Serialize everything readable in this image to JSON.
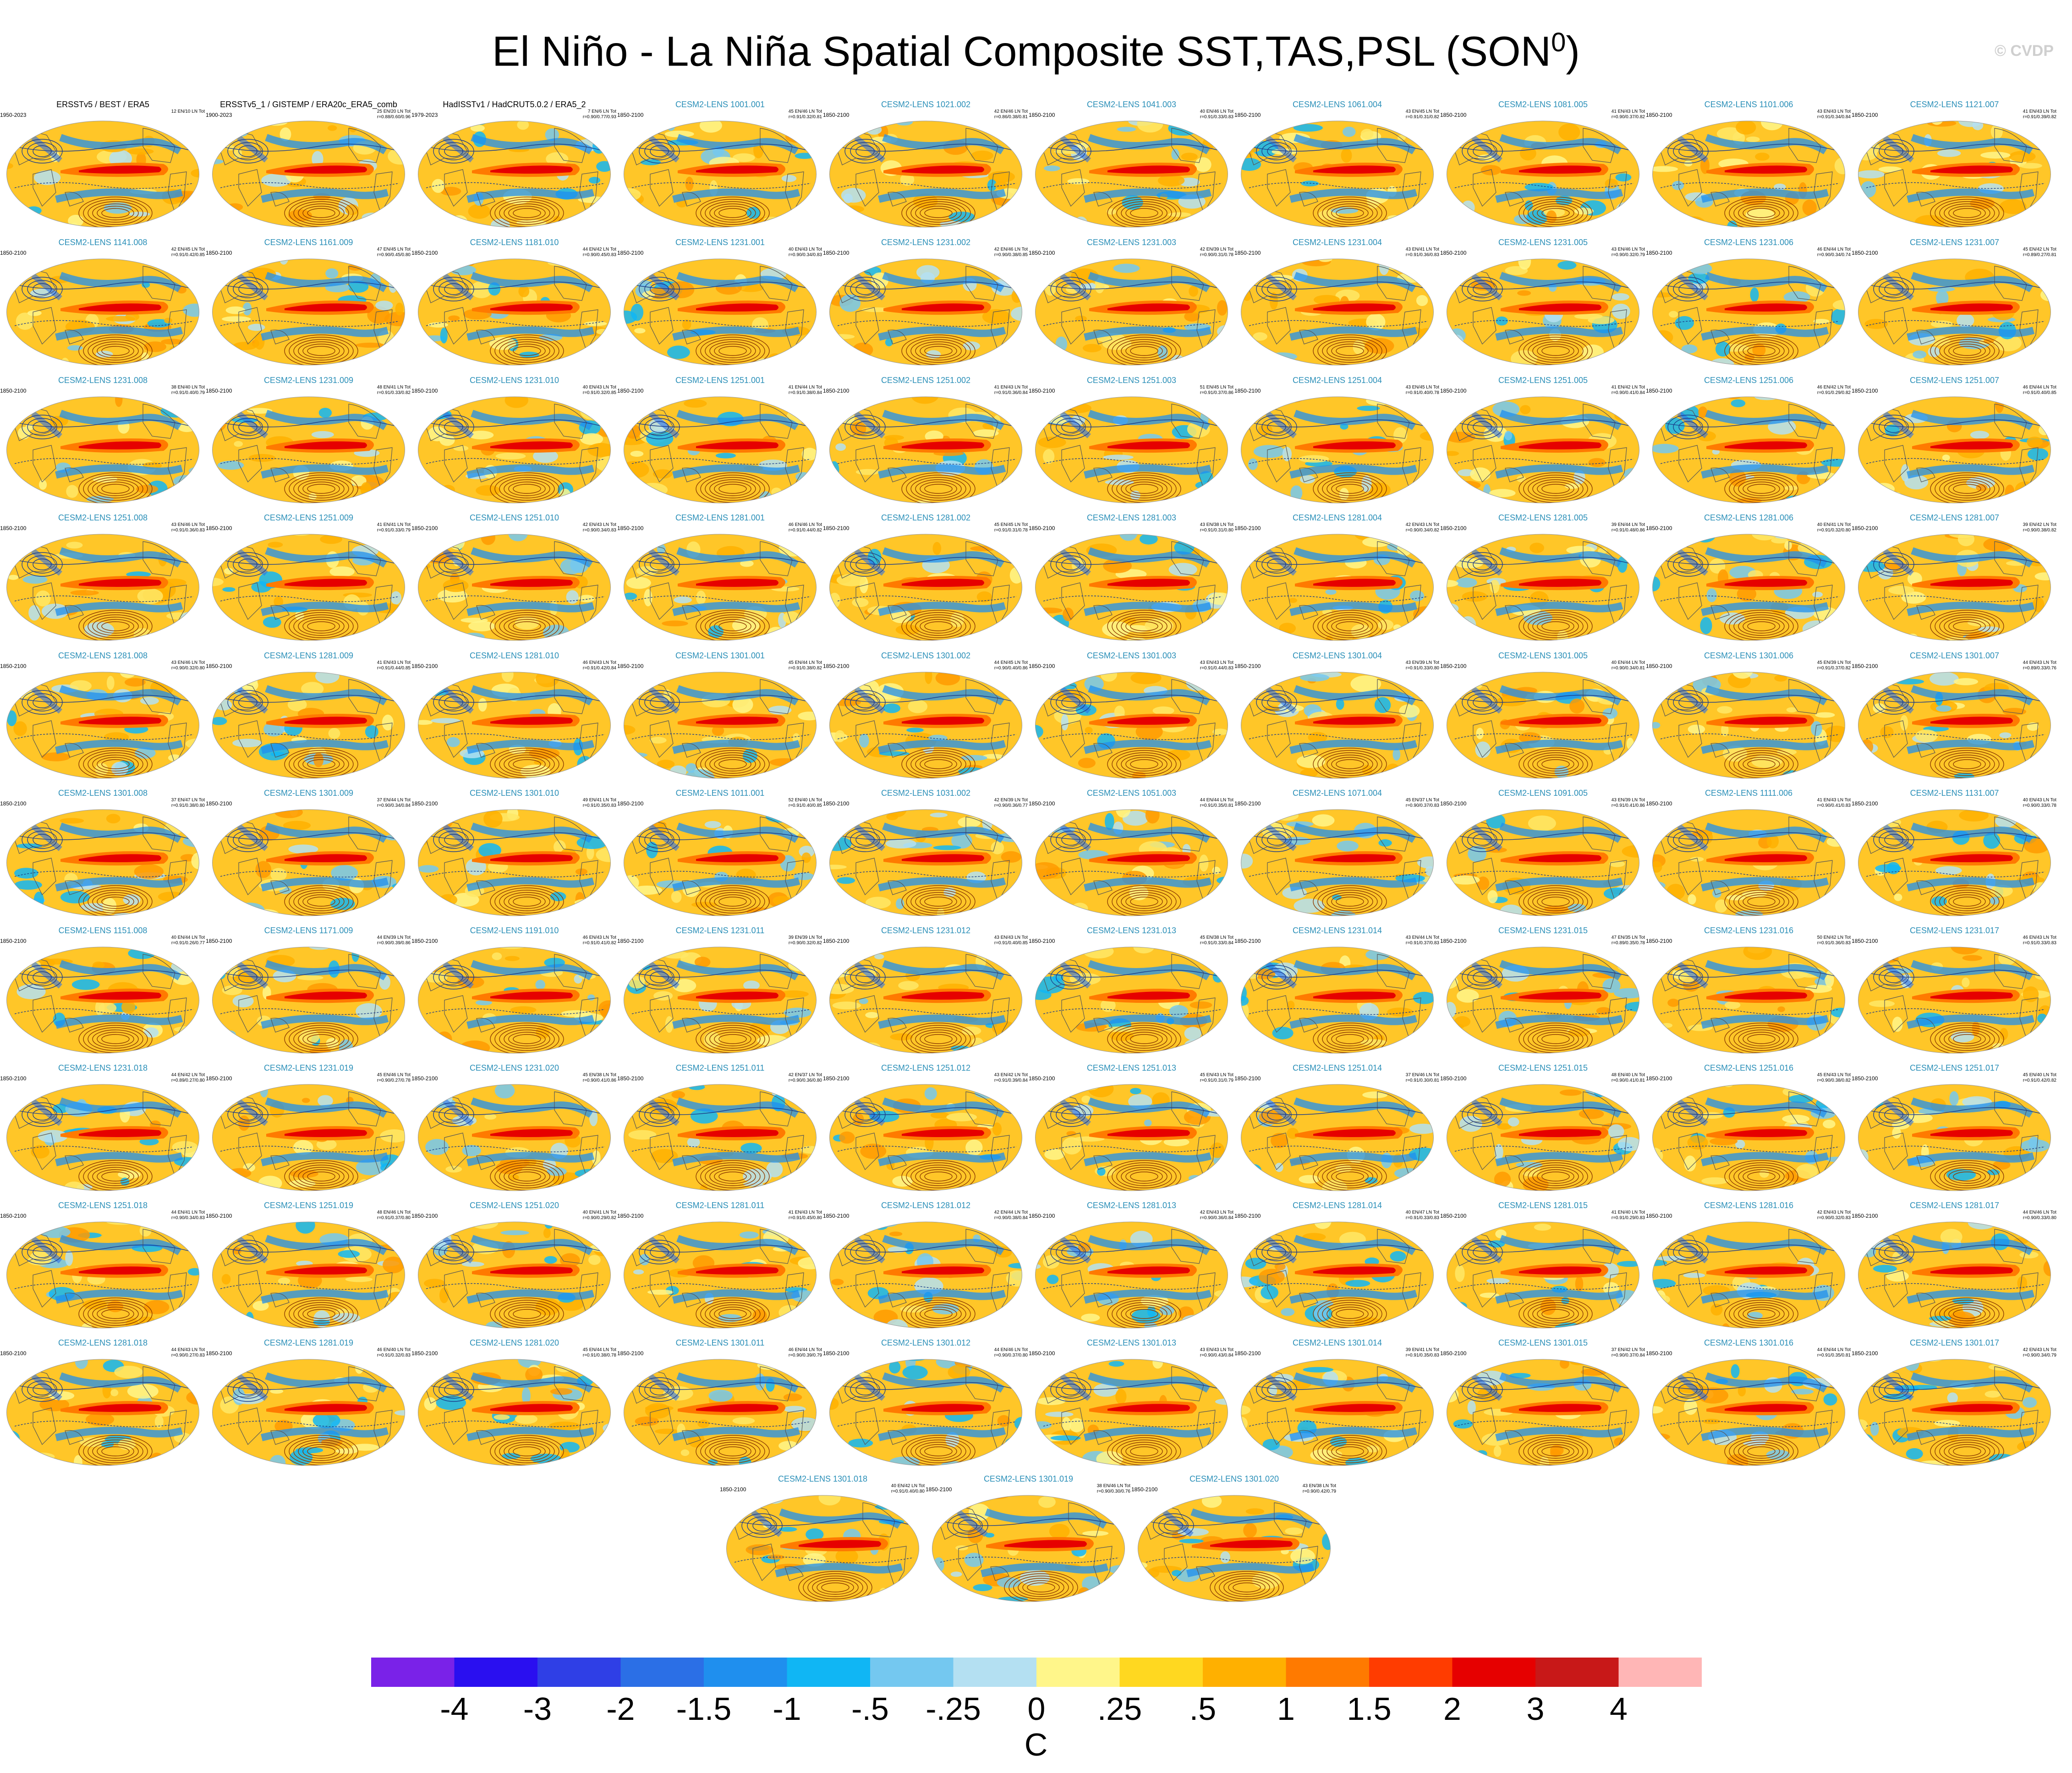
{
  "title": {
    "main": "El Niño - La Niña Spatial Composite SST,TAS,PSL (SON",
    "sup": "0",
    "end": ")"
  },
  "watermark": "© CVDP",
  "chart_data": {
    "type": "heatmap",
    "title": "El Niño - La Niña Spatial Composite SST,TAS,PSL (SON0)",
    "colorbar": {
      "unit": "C",
      "tick_labels": [
        "-4",
        "-3",
        "-2",
        "-1.5",
        "-1",
        "-.5",
        "-.25",
        "0",
        ".25",
        ".5",
        "1",
        "1.5",
        "2",
        "3",
        "4"
      ],
      "colors": [
        "#7a22e8",
        "#2a0ff0",
        "#2f3fe6",
        "#2b6fe6",
        "#1f8fee",
        "#10b6f4",
        "#74c8f0",
        "#b4e0f2",
        "#fff68a",
        "#ffd820",
        "#ffb000",
        "#ff7a00",
        "#ff3c00",
        "#e60000",
        "#c81818",
        "#ffb6b6"
      ]
    },
    "panels": [
      {
        "title": "ERSSTv5 / BEST / ERA5",
        "period": "1950-2023",
        "stats1": "12 EN/10 LN Tot",
        "stats2": "",
        "obs": true
      },
      {
        "title": "ERSSTv5_1 / GISTEMP / ERA20c_ERA5_comb",
        "period": "1900-2023",
        "stats1": "25 EN/20 LN Tot",
        "stats2": "r=0.88/0.60/0.96",
        "obs": true
      },
      {
        "title": "HadISSTv1 / HadCRUT5.0.2 / ERA5_2",
        "period": "1979-2023",
        "stats1": "7 EN/6 LN Tot",
        "stats2": "r=0.90/0.77/0.93",
        "obs": true
      },
      {
        "title": "CESM2-LENS 1001.001",
        "period": "1850-2100",
        "stats1": "45 EN/46 LN Tot",
        "stats2": "r=0.91/0.32/0.81"
      },
      {
        "title": "CESM2-LENS 1021.002",
        "period": "1850-2100",
        "stats1": "42 EN/46 LN Tot",
        "stats2": "r=0.86/0.38/0.81"
      },
      {
        "title": "CESM2-LENS 1041.003",
        "period": "1850-2100",
        "stats1": "40 EN/46 LN Tot",
        "stats2": "r=0.91/0.33/0.83"
      },
      {
        "title": "CESM2-LENS 1061.004",
        "period": "1850-2100",
        "stats1": "43 EN/45 LN Tot",
        "stats2": "r=0.91/0.31/0.82"
      },
      {
        "title": "CESM2-LENS 1081.005",
        "period": "1850-2100",
        "stats1": "41 EN/43 LN Tot",
        "stats2": "r=0.90/0.37/0.82"
      },
      {
        "title": "CESM2-LENS 1101.006",
        "period": "1850-2100",
        "stats1": "43 EN/43 LN Tot",
        "stats2": "r=0.91/0.34/0.84"
      },
      {
        "title": "CESM2-LENS 1121.007",
        "period": "1850-2100",
        "stats1": "41 EN/43 LN Tot",
        "stats2": "r=0.91/0.39/0.82"
      },
      {
        "title": "CESM2-LENS 1141.008",
        "period": "1850-2100",
        "stats1": "42 EN/45 LN Tot",
        "stats2": "r=0.91/0.42/0.85"
      },
      {
        "title": "CESM2-LENS 1161.009",
        "period": "1850-2100",
        "stats1": "47 EN/45 LN Tot",
        "stats2": "r=0.90/0.45/0.80"
      },
      {
        "title": "CESM2-LENS 1181.010",
        "period": "1850-2100",
        "stats1": "44 EN/42 LN Tot",
        "stats2": "r=0.90/0.45/0.83"
      },
      {
        "title": "CESM2-LENS 1231.001",
        "period": "1850-2100",
        "stats1": "40 EN/43 LN Tot",
        "stats2": "r=0.90/0.34/0.83"
      },
      {
        "title": "CESM2-LENS 1231.002",
        "period": "1850-2100",
        "stats1": "42 EN/46 LN Tot",
        "stats2": "r=0.90/0.38/0.85"
      },
      {
        "title": "CESM2-LENS 1231.003",
        "period": "1850-2100",
        "stats1": "42 EN/39 LN Tot",
        "stats2": "r=0.90/0.31/0.78"
      },
      {
        "title": "CESM2-LENS 1231.004",
        "period": "1850-2100",
        "stats1": "43 EN/41 LN Tot",
        "stats2": "r=0.91/0.36/0.83"
      },
      {
        "title": "CESM2-LENS 1231.005",
        "period": "1850-2100",
        "stats1": "43 EN/46 LN Tot",
        "stats2": "r=0.90/0.32/0.79"
      },
      {
        "title": "CESM2-LENS 1231.006",
        "period": "1850-2100",
        "stats1": "46 EN/44 LN Tot",
        "stats2": "r=0.90/0.34/0.74"
      },
      {
        "title": "CESM2-LENS 1231.007",
        "period": "1850-2100",
        "stats1": "45 EN/42 LN Tot",
        "stats2": "r=0.89/0.27/0.81"
      },
      {
        "title": "CESM2-LENS 1231.008",
        "period": "1850-2100",
        "stats1": "38 EN/40 LN Tot",
        "stats2": "r=0.91/0.40/0.79"
      },
      {
        "title": "CESM2-LENS 1231.009",
        "period": "1850-2100",
        "stats1": "48 EN/41 LN Tot",
        "stats2": "r=0.91/0.33/0.82"
      },
      {
        "title": "CESM2-LENS 1231.010",
        "period": "1850-2100",
        "stats1": "40 EN/43 LN Tot",
        "stats2": "r=0.91/0.32/0.85"
      },
      {
        "title": "CESM2-LENS 1251.001",
        "period": "1850-2100",
        "stats1": "41 EN/44 LN Tot",
        "stats2": "r=0.91/0.38/0.84"
      },
      {
        "title": "CESM2-LENS 1251.002",
        "period": "1850-2100",
        "stats1": "41 EN/43 LN Tot",
        "stats2": "r=0.91/0.36/0.84"
      },
      {
        "title": "CESM2-LENS 1251.003",
        "period": "1850-2100",
        "stats1": "51 EN/45 LN Tot",
        "stats2": "r=0.91/0.37/0.86"
      },
      {
        "title": "CESM2-LENS 1251.004",
        "period": "1850-2100",
        "stats1": "43 EN/45 LN Tot",
        "stats2": "r=0.91/0.40/0.78"
      },
      {
        "title": "CESM2-LENS 1251.005",
        "period": "1850-2100",
        "stats1": "41 EN/42 LN Tot",
        "stats2": "r=0.90/0.41/0.84"
      },
      {
        "title": "CESM2-LENS 1251.006",
        "period": "1850-2100",
        "stats1": "46 EN/42 LN Tot",
        "stats2": "r=0.91/0.29/0.82"
      },
      {
        "title": "CESM2-LENS 1251.007",
        "period": "1850-2100",
        "stats1": "46 EN/44 LN Tot",
        "stats2": "r=0.91/0.40/0.85"
      },
      {
        "title": "CESM2-LENS 1251.008",
        "period": "1850-2100",
        "stats1": "43 EN/46 LN Tot",
        "stats2": "r=0.91/0.36/0.83"
      },
      {
        "title": "CESM2-LENS 1251.009",
        "period": "1850-2100",
        "stats1": "41 EN/41 LN Tot",
        "stats2": "r=0.91/0.33/0.79"
      },
      {
        "title": "CESM2-LENS 1251.010",
        "period": "1850-2100",
        "stats1": "42 EN/43 LN Tot",
        "stats2": "r=0.90/0.34/0.83"
      },
      {
        "title": "CESM2-LENS 1281.001",
        "period": "1850-2100",
        "stats1": "46 EN/46 LN Tot",
        "stats2": "r=0.91/0.44/0.82"
      },
      {
        "title": "CESM2-LENS 1281.002",
        "period": "1850-2100",
        "stats1": "45 EN/45 LN Tot",
        "stats2": "r=0.91/0.31/0.78"
      },
      {
        "title": "CESM2-LENS 1281.003",
        "period": "1850-2100",
        "stats1": "43 EN/38 LN Tot",
        "stats2": "r=0.91/0.31/0.80"
      },
      {
        "title": "CESM2-LENS 1281.004",
        "period": "1850-2100",
        "stats1": "42 EN/43 LN Tot",
        "stats2": "r=0.90/0.34/0.82"
      },
      {
        "title": "CESM2-LENS 1281.005",
        "period": "1850-2100",
        "stats1": "39 EN/44 LN Tot",
        "stats2": "r=0.91/0.48/0.86"
      },
      {
        "title": "CESM2-LENS 1281.006",
        "period": "1850-2100",
        "stats1": "40 EN/41 LN Tot",
        "stats2": "r=0.91/0.32/0.80"
      },
      {
        "title": "CESM2-LENS 1281.007",
        "period": "1850-2100",
        "stats1": "39 EN/42 LN Tot",
        "stats2": "r=0.90/0.38/0.82"
      },
      {
        "title": "CESM2-LENS 1281.008",
        "period": "1850-2100",
        "stats1": "43 EN/46 LN Tot",
        "stats2": "r=0.90/0.32/0.80"
      },
      {
        "title": "CESM2-LENS 1281.009",
        "period": "1850-2100",
        "stats1": "41 EN/43 LN Tot",
        "stats2": "r=0.91/0.44/0.85"
      },
      {
        "title": "CESM2-LENS 1281.010",
        "period": "1850-2100",
        "stats1": "46 EN/43 LN Tot",
        "stats2": "r=0.91/0.42/0.84"
      },
      {
        "title": "CESM2-LENS 1301.001",
        "period": "1850-2100",
        "stats1": "45 EN/44 LN Tot",
        "stats2": "r=0.91/0.38/0.82"
      },
      {
        "title": "CESM2-LENS 1301.002",
        "period": "1850-2100",
        "stats1": "44 EN/45 LN Tot",
        "stats2": "r=0.90/0.40/0.86"
      },
      {
        "title": "CESM2-LENS 1301.003",
        "period": "1850-2100",
        "stats1": "43 EN/43 LN Tot",
        "stats2": "r=0.91/0.44/0.83"
      },
      {
        "title": "CESM2-LENS 1301.004",
        "period": "1850-2100",
        "stats1": "43 EN/39 LN Tot",
        "stats2": "r=0.91/0.33/0.80"
      },
      {
        "title": "CESM2-LENS 1301.005",
        "period": "1850-2100",
        "stats1": "40 EN/44 LN Tot",
        "stats2": "r=0.90/0.34/0.81"
      },
      {
        "title": "CESM2-LENS 1301.006",
        "period": "1850-2100",
        "stats1": "45 EN/39 LN Tot",
        "stats2": "r=0.91/0.37/0.82"
      },
      {
        "title": "CESM2-LENS 1301.007",
        "period": "1850-2100",
        "stats1": "44 EN/43 LN Tot",
        "stats2": "r=0.89/0.33/0.76"
      },
      {
        "title": "CESM2-LENS 1301.008",
        "period": "1850-2100",
        "stats1": "37 EN/47 LN Tot",
        "stats2": "r=0.91/0.38/0.80"
      },
      {
        "title": "CESM2-LENS 1301.009",
        "period": "1850-2100",
        "stats1": "37 EN/44 LN Tot",
        "stats2": "r=0.90/0.34/0.84"
      },
      {
        "title": "CESM2-LENS 1301.010",
        "period": "1850-2100",
        "stats1": "49 EN/41 LN Tot",
        "stats2": "r=0.91/0.35/0.83"
      },
      {
        "title": "CESM2-LENS 1011.001",
        "period": "1850-2100",
        "stats1": "52 EN/40 LN Tot",
        "stats2": "r=0.91/0.40/0.85"
      },
      {
        "title": "CESM2-LENS 1031.002",
        "period": "1850-2100",
        "stats1": "42 EN/39 LN Tot",
        "stats2": "r=0.90/0.36/0.77"
      },
      {
        "title": "CESM2-LENS 1051.003",
        "period": "1850-2100",
        "stats1": "44 EN/44 LN Tot",
        "stats2": "r=0.91/0.35/0.81"
      },
      {
        "title": "CESM2-LENS 1071.004",
        "period": "1850-2100",
        "stats1": "45 EN/37 LN Tot",
        "stats2": "r=0.90/0.37/0.83"
      },
      {
        "title": "CESM2-LENS 1091.005",
        "period": "1850-2100",
        "stats1": "43 EN/39 LN Tot",
        "stats2": "r=0.91/0.41/0.86"
      },
      {
        "title": "CESM2-LENS 1111.006",
        "period": "1850-2100",
        "stats1": "41 EN/43 LN Tot",
        "stats2": "r=0.90/0.41/0.83"
      },
      {
        "title": "CESM2-LENS 1131.007",
        "period": "1850-2100",
        "stats1": "40 EN/43 LN Tot",
        "stats2": "r=0.90/0.33/0.78"
      },
      {
        "title": "CESM2-LENS 1151.008",
        "period": "1850-2100",
        "stats1": "40 EN/44 LN Tot",
        "stats2": "r=0.91/0.26/0.77"
      },
      {
        "title": "CESM2-LENS 1171.009",
        "period": "1850-2100",
        "stats1": "44 EN/39 LN Tot",
        "stats2": "r=0.90/0.39/0.86"
      },
      {
        "title": "CESM2-LENS 1191.010",
        "period": "1850-2100",
        "stats1": "46 EN/43 LN Tot",
        "stats2": "r=0.91/0.41/0.82"
      },
      {
        "title": "CESM2-LENS 1231.011",
        "period": "1850-2100",
        "stats1": "39 EN/39 LN Tot",
        "stats2": "r=0.90/0.32/0.82"
      },
      {
        "title": "CESM2-LENS 1231.012",
        "period": "1850-2100",
        "stats1": "43 EN/43 LN Tot",
        "stats2": "r=0.91/0.40/0.85"
      },
      {
        "title": "CESM2-LENS 1231.013",
        "period": "1850-2100",
        "stats1": "45 EN/38 LN Tot",
        "stats2": "r=0.91/0.33/0.84"
      },
      {
        "title": "CESM2-LENS 1231.014",
        "period": "1850-2100",
        "stats1": "43 EN/44 LN Tot",
        "stats2": "r=0.91/0.37/0.83"
      },
      {
        "title": "CESM2-LENS 1231.015",
        "period": "1850-2100",
        "stats1": "47 EN/35 LN Tot",
        "stats2": "r=0.89/0.35/0.78"
      },
      {
        "title": "CESM2-LENS 1231.016",
        "period": "1850-2100",
        "stats1": "50 EN/42 LN Tot",
        "stats2": "r=0.91/0.36/0.83"
      },
      {
        "title": "CESM2-LENS 1231.017",
        "period": "1850-2100",
        "stats1": "46 EN/43 LN Tot",
        "stats2": "r=0.91/0.33/0.83"
      },
      {
        "title": "CESM2-LENS 1231.018",
        "period": "1850-2100",
        "stats1": "44 EN/42 LN Tot",
        "stats2": "r=0.89/0.27/0.80"
      },
      {
        "title": "CESM2-LENS 1231.019",
        "period": "1850-2100",
        "stats1": "45 EN/46 LN Tot",
        "stats2": "r=0.90/0.27/0.78"
      },
      {
        "title": "CESM2-LENS 1231.020",
        "period": "1850-2100",
        "stats1": "45 EN/38 LN Tot",
        "stats2": "r=0.90/0.41/0.86"
      },
      {
        "title": "CESM2-LENS 1251.011",
        "period": "1850-2100",
        "stats1": "42 EN/37 LN Tot",
        "stats2": "r=0.90/0.36/0.80"
      },
      {
        "title": "CESM2-LENS 1251.012",
        "period": "1850-2100",
        "stats1": "43 EN/42 LN Tot",
        "stats2": "r=0.91/0.39/0.84"
      },
      {
        "title": "CESM2-LENS 1251.013",
        "period": "1850-2100",
        "stats1": "45 EN/43 LN Tot",
        "stats2": "r=0.91/0.31/0.79"
      },
      {
        "title": "CESM2-LENS 1251.014",
        "period": "1850-2100",
        "stats1": "37 EN/46 LN Tot",
        "stats2": "r=0.91/0.30/0.81"
      },
      {
        "title": "CESM2-LENS 1251.015",
        "period": "1850-2100",
        "stats1": "48 EN/40 LN Tot",
        "stats2": "r=0.90/0.41/0.81"
      },
      {
        "title": "CESM2-LENS 1251.016",
        "period": "1850-2100",
        "stats1": "45 EN/43 LN Tot",
        "stats2": "r=0.90/0.38/0.82"
      },
      {
        "title": "CESM2-LENS 1251.017",
        "period": "1850-2100",
        "stats1": "45 EN/40 LN Tot",
        "stats2": "r=0.91/0.42/0.82"
      },
      {
        "title": "CESM2-LENS 1251.018",
        "period": "1850-2100",
        "stats1": "44 EN/41 LN Tot",
        "stats2": "r=0.90/0.34/0.83"
      },
      {
        "title": "CESM2-LENS 1251.019",
        "period": "1850-2100",
        "stats1": "48 EN/46 LN Tot",
        "stats2": "r=0.91/0.37/0.80"
      },
      {
        "title": "CESM2-LENS 1251.020",
        "period": "1850-2100",
        "stats1": "40 EN/41 LN Tot",
        "stats2": "r=0.90/0.29/0.82"
      },
      {
        "title": "CESM2-LENS 1281.011",
        "period": "1850-2100",
        "stats1": "41 EN/43 LN Tot",
        "stats2": "r=0.91/0.45/0.80"
      },
      {
        "title": "CESM2-LENS 1281.012",
        "period": "1850-2100",
        "stats1": "42 EN/44 LN Tot",
        "stats2": "r=0.90/0.38/0.84"
      },
      {
        "title": "CESM2-LENS 1281.013",
        "period": "1850-2100",
        "stats1": "42 EN/43 LN Tot",
        "stats2": "r=0.90/0.36/0.84"
      },
      {
        "title": "CESM2-LENS 1281.014",
        "period": "1850-2100",
        "stats1": "40 EN/47 LN Tot",
        "stats2": "r=0.91/0.33/0.83"
      },
      {
        "title": "CESM2-LENS 1281.015",
        "period": "1850-2100",
        "stats1": "41 EN/40 LN Tot",
        "stats2": "r=0.91/0.29/0.83"
      },
      {
        "title": "CESM2-LENS 1281.016",
        "period": "1850-2100",
        "stats1": "42 EN/43 LN Tot",
        "stats2": "r=0.90/0.32/0.83"
      },
      {
        "title": "CESM2-LENS 1281.017",
        "period": "1850-2100",
        "stats1": "44 EN/46 LN Tot",
        "stats2": "r=0.90/0.33/0.80"
      },
      {
        "title": "CESM2-LENS 1281.018",
        "period": "1850-2100",
        "stats1": "44 EN/43 LN Tot",
        "stats2": "r=0.90/0.27/0.83"
      },
      {
        "title": "CESM2-LENS 1281.019",
        "period": "1850-2100",
        "stats1": "46 EN/40 LN Tot",
        "stats2": "r=0.91/0.32/0.83"
      },
      {
        "title": "CESM2-LENS 1281.020",
        "period": "1850-2100",
        "stats1": "45 EN/44 LN Tot",
        "stats2": "r=0.91/0.38/0.78"
      },
      {
        "title": "CESM2-LENS 1301.011",
        "period": "1850-2100",
        "stats1": "46 EN/44 LN Tot",
        "stats2": "r=0.90/0.39/0.79"
      },
      {
        "title": "CESM2-LENS 1301.012",
        "period": "1850-2100",
        "stats1": "44 EN/46 LN Tot",
        "stats2": "r=0.90/0.37/0.80"
      },
      {
        "title": "CESM2-LENS 1301.013",
        "period": "1850-2100",
        "stats1": "43 EN/43 LN Tot",
        "stats2": "r=0.90/0.43/0.84"
      },
      {
        "title": "CESM2-LENS 1301.014",
        "period": "1850-2100",
        "stats1": "39 EN/41 LN Tot",
        "stats2": "r=0.91/0.35/0.83"
      },
      {
        "title": "CESM2-LENS 1301.015",
        "period": "1850-2100",
        "stats1": "37 EN/42 LN Tot",
        "stats2": "r=0.90/0.37/0.84"
      },
      {
        "title": "CESM2-LENS 1301.016",
        "period": "1850-2100",
        "stats1": "44 EN/44 LN Tot",
        "stats2": "r=0.91/0.35/0.81"
      },
      {
        "title": "CESM2-LENS 1301.017",
        "period": "1850-2100",
        "stats1": "42 EN/43 LN Tot",
        "stats2": "r=0.90/0.34/0.79"
      },
      {
        "title": "CESM2-LENS 1301.018",
        "period": "1850-2100",
        "stats1": "40 EN/42 LN Tot",
        "stats2": "r=0.91/0.40/0.80"
      },
      {
        "title": "CESM2-LENS 1301.019",
        "period": "1850-2100",
        "stats1": "38 EN/46 LN Tot",
        "stats2": "r=0.90/0.30/0.76"
      },
      {
        "title": "CESM2-LENS 1301.020",
        "period": "1850-2100",
        "stats1": "43 EN/38 LN Tot",
        "stats2": "r=0.90/0.42/0.79"
      }
    ]
  }
}
